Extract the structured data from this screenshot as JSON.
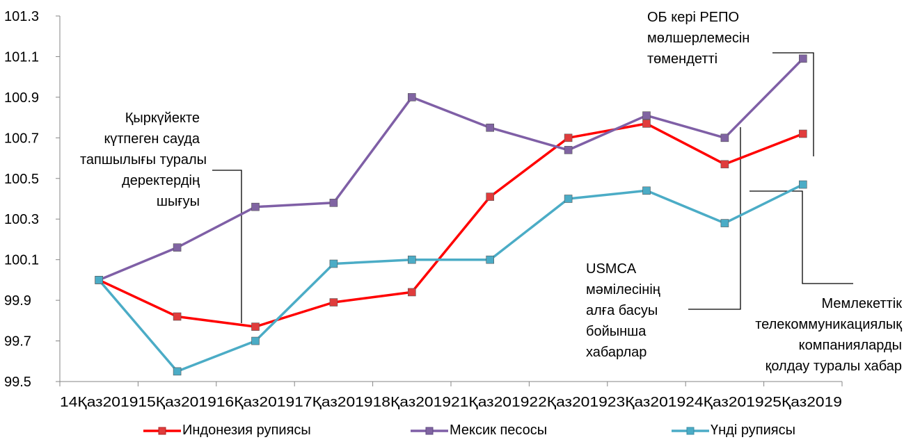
{
  "chart_data": {
    "type": "line",
    "categories": [
      "14Қаз2019",
      "15Қаз2019",
      "16Қаз2019",
      "17Қаз2019",
      "18Қаз2019",
      "21Қаз2019",
      "22Қаз2019",
      "23Қаз2019",
      "24Қаз2019",
      "25Қаз2019"
    ],
    "ylim": [
      99.5,
      101.3
    ],
    "yticks": [
      "99.5",
      "99.7",
      "99.9",
      "100.1",
      "100.3",
      "100.5",
      "100.7",
      "100.9",
      "101.1",
      "101.3"
    ],
    "grid": false,
    "legend_position": "bottom",
    "series": [
      {
        "name": "Индонезия рупиясы",
        "color": "#ff0000",
        "marker_color": "#e03c3c",
        "values": [
          100.0,
          99.82,
          99.77,
          99.89,
          99.94,
          100.41,
          100.7,
          100.77,
          100.57,
          100.72
        ]
      },
      {
        "name": "Мексик песосы",
        "color": "#7f5fa6",
        "marker_color": "#8064a2",
        "values": [
          100.0,
          100.16,
          100.36,
          100.38,
          100.9,
          100.75,
          100.64,
          100.81,
          100.7,
          101.09
        ]
      },
      {
        "name": "Үнді рупиясы",
        "color": "#4bacc6",
        "marker_color": "#4bacc6",
        "values": [
          100.0,
          99.55,
          99.7,
          100.08,
          100.1,
          100.1,
          100.4,
          100.44,
          100.28,
          100.47
        ]
      }
    ],
    "annotations": [
      {
        "lines": [
          "Қыркүйекте",
          "күтпеген сауда",
          "тапшылығы туралы",
          "деректердің",
          "шығуы"
        ]
      },
      {
        "lines": [
          "ОБ кері РЕПО",
          "мөлшерлемесін",
          "төмендетті"
        ]
      },
      {
        "lines": [
          "USMCA",
          "мәмілесінің",
          "алға басуы",
          "бойынша",
          "хабарлар"
        ]
      },
      {
        "lines": [
          "Мемлекеттік",
          "телекоммуникациялық",
          "компанияларды",
          "қолдау туралы хабар"
        ]
      }
    ]
  }
}
